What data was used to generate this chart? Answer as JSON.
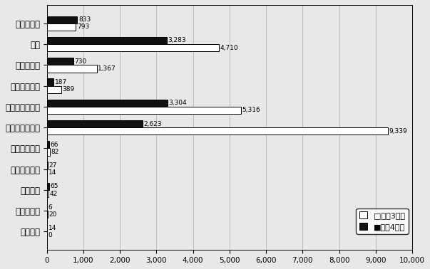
{
  "categories": [
    "来訪・面談",
    "電話",
    "手紙・文書",
    "市長宛の手紙",
    "インターネット",
    "市長宛のメール",
    "市長宛要望書",
    "区長宛要望書",
    "新聞投書",
    "その他広聴",
    "集団広聴"
  ],
  "reiwa3": [
    793,
    4710,
    1367,
    389,
    5316,
    9339,
    82,
    14,
    42,
    20,
    0
  ],
  "reiwa4": [
    833,
    3283,
    730,
    187,
    3304,
    2623,
    66,
    27,
    65,
    6,
    14
  ],
  "color_reiwa3": "#ffffff",
  "color_reiwa4": "#111111",
  "edge_color": "#000000",
  "xlim": [
    0,
    10000
  ],
  "xticks": [
    0,
    1000,
    2000,
    3000,
    4000,
    5000,
    6000,
    7000,
    8000,
    9000,
    10000
  ],
  "legend_reiwa3": "□令和3年度",
  "legend_reiwa4": "■令和4年度",
  "bg_color": "#e8e8e8",
  "bar_height": 0.35
}
